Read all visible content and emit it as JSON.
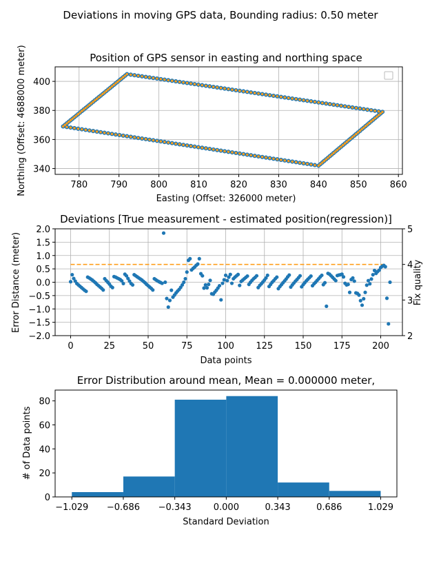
{
  "suptitle": "Deviations in moving GPS data, Bounding radius: 0.50 meter",
  "colors": {
    "blue": "#1f77b4",
    "orange": "#ff9e1b",
    "grid": "#b0b0b0"
  },
  "chart_data": [
    {
      "type": "scatter",
      "title": "Position of GPS sensor in easting and northing space",
      "xlabel": "Easting (Offset: 326000 meter)",
      "ylabel": "Northing (Offset: 4688000 meter)",
      "xlim": [
        774,
        861
      ],
      "ylim": [
        336,
        410
      ],
      "xticks": [
        780,
        790,
        800,
        810,
        820,
        830,
        840,
        850,
        860
      ],
      "yticks": [
        340,
        360,
        380,
        400
      ],
      "grid": true,
      "legend": "top-right (empty)",
      "series": [
        {
          "kind": "track",
          "color": "#1f77b4",
          "vertices": [
            [
              776,
              369
            ],
            [
              792,
              405
            ],
            [
              856,
              379
            ],
            [
              840,
              342
            ],
            [
              776,
              369
            ]
          ],
          "points_per_edge": [
            34,
            68,
            34,
            68
          ]
        },
        {
          "kind": "regression",
          "color": "#ff9e1b",
          "vertices": [
            [
              776,
              369
            ],
            [
              792,
              405
            ],
            [
              856,
              379
            ],
            [
              840,
              342
            ],
            [
              776,
              369
            ]
          ],
          "points_per_edge": [
            34,
            68,
            34,
            68
          ]
        }
      ]
    },
    {
      "type": "scatter",
      "title": "Deviations [True measurement - estimated position(regression)]",
      "xlabel": "Data points",
      "ylabel": "Error Distance (meter)",
      "ylabel_right": "Fix quality",
      "xlim": [
        -10,
        214
      ],
      "ylim": [
        -2.0,
        2.0
      ],
      "ylim_right": [
        2,
        5
      ],
      "xticks": [
        0,
        25,
        50,
        75,
        100,
        125,
        150,
        175,
        200
      ],
      "yticks": [
        "-2.0",
        "-1.5",
        "-1.0",
        "-0.5",
        "0.0",
        "0.5",
        "1.0",
        "1.5",
        "2.0"
      ],
      "yticks_right": [
        2,
        3,
        4,
        5
      ],
      "grid": true,
      "fix_quality_line": {
        "value": 4,
        "x_range": [
          0,
          204
        ],
        "color": "#ff9e1b",
        "style": "dashed"
      },
      "y": [
        0.02,
        0.28,
        0.14,
        0.04,
        -0.05,
        -0.1,
        -0.15,
        -0.2,
        -0.25,
        -0.3,
        -0.34,
        0.19,
        0.16,
        0.12,
        0.08,
        0.03,
        -0.02,
        -0.08,
        -0.13,
        -0.18,
        -0.23,
        -0.29,
        0.13,
        0.06,
        0.0,
        -0.07,
        -0.15,
        -0.2,
        0.21,
        0.19,
        0.16,
        0.13,
        0.1,
        0.05,
        -0.05,
        0.3,
        0.24,
        0.14,
        0.04,
        -0.05,
        -0.1,
        0.28,
        0.24,
        0.2,
        0.16,
        0.12,
        0.08,
        0.03,
        -0.02,
        -0.08,
        -0.13,
        -0.18,
        -0.23,
        -0.29,
        0.13,
        0.09,
        0.05,
        0.02,
        -0.01,
        -0.04,
        1.84,
        0.0,
        -0.61,
        -0.93,
        -0.68,
        -0.3,
        -0.56,
        -0.48,
        -0.4,
        -0.33,
        -0.27,
        -0.19,
        -0.1,
        0.0,
        0.13,
        0.38,
        0.82,
        0.88,
        0.46,
        0.52,
        0.57,
        0.63,
        0.68,
        0.88,
        0.32,
        0.24,
        -0.22,
        -0.1,
        -0.21,
        -0.08,
        0.07,
        -0.43,
        -0.45,
        -0.37,
        -0.3,
        -0.22,
        -0.13,
        -0.66,
        -0.04,
        0.09,
        0.26,
        0.06,
        0.19,
        0.29,
        -0.04,
        0.13,
        0.19,
        0.24,
        0.29,
        -0.12,
        0.03,
        0.08,
        0.13,
        0.18,
        0.23,
        -0.08,
        0.0,
        0.07,
        0.13,
        0.18,
        0.24,
        -0.2,
        -0.12,
        -0.06,
        0.01,
        0.08,
        0.16,
        0.26,
        -0.16,
        -0.08,
        0.0,
        0.06,
        0.13,
        0.19,
        -0.24,
        -0.16,
        -0.09,
        -0.02,
        0.05,
        0.12,
        0.2,
        0.27,
        -0.18,
        -0.1,
        -0.03,
        0.04,
        0.1,
        0.17,
        0.24,
        -0.17,
        -0.09,
        -0.02,
        0.05,
        0.11,
        0.17,
        0.23,
        -0.13,
        -0.06,
        0.0,
        0.07,
        0.13,
        0.2,
        0.26,
        -0.09,
        -0.02,
        -0.9,
        0.33,
        0.3,
        0.24,
        0.18,
        0.12,
        0.06,
        0.25,
        0.27,
        0.28,
        0.3,
        0.2,
        -0.04,
        -0.1,
        -0.08,
        -0.38,
        0.1,
        0.16,
        0.04,
        -0.4,
        -0.42,
        -0.48,
        -0.69,
        -0.86,
        -0.62,
        -0.38,
        -0.11,
        0.06,
        -0.06,
        0.12,
        0.28,
        0.44,
        0.33,
        0.4,
        0.45,
        0.55,
        0.6,
        0.63,
        0.58,
        -0.6,
        -1.56,
        0.0
      ]
    },
    {
      "type": "bar",
      "title": "Error Distribution around mean, Mean = 0.000000 meter,",
      "xlabel": "Standard Deviation",
      "ylabel": "# of Data points",
      "bin_edges": [
        -1.029,
        -0.686,
        -0.343,
        0.0,
        0.343,
        0.686,
        1.029
      ],
      "values": [
        4,
        17,
        81,
        84,
        12,
        5
      ],
      "xticks": [
        "-1.029",
        "-0.686",
        "-0.343",
        "0.000",
        "0.343",
        "0.686",
        "1.029"
      ],
      "yticks": [
        0,
        20,
        40,
        60,
        80
      ],
      "ylim": [
        0,
        89
      ],
      "color": "#1f77b4"
    }
  ]
}
